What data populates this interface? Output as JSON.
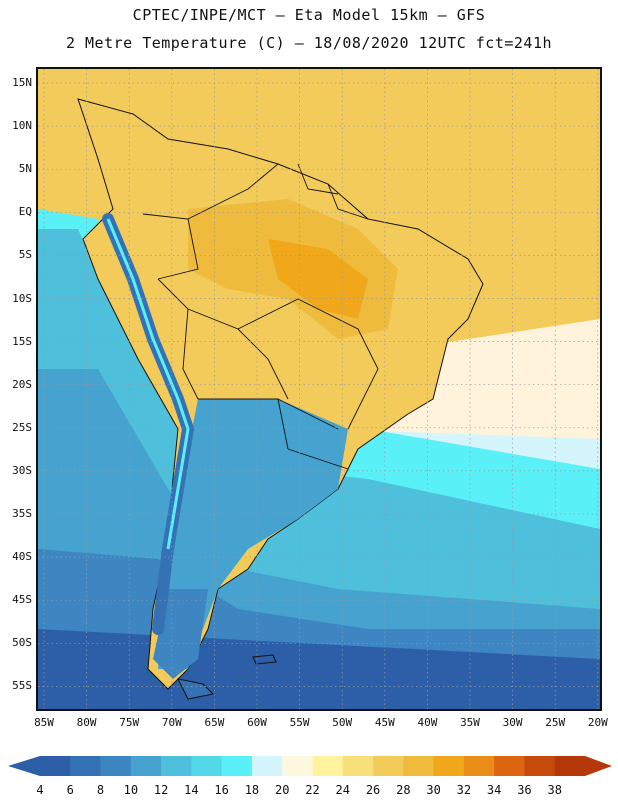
{
  "title_line1": "CPTEC/INPE/MCT –  Eta Model 15km – GFS",
  "title_line2": "2 Metre Temperature (C) – 18/08/2020 12UTC fct=241h",
  "lat_labels": [
    "15N",
    "10N",
    "5N",
    "EQ",
    "5S",
    "10S",
    "15S",
    "20S",
    "25S",
    "30S",
    "35S",
    "40S",
    "45S",
    "50S",
    "55S"
  ],
  "lon_labels": [
    "85W",
    "80W",
    "75W",
    "70W",
    "65W",
    "60W",
    "55W",
    "50W",
    "45W",
    "40W",
    "35W",
    "30W",
    "25W",
    "20W"
  ],
  "colorbar": {
    "labels": [
      "4",
      "6",
      "8",
      "10",
      "12",
      "14",
      "16",
      "18",
      "20",
      "22",
      "24",
      "26",
      "28",
      "30",
      "32",
      "34",
      "36",
      "38"
    ],
    "colors": [
      "#2c5fa8",
      "#3572b5",
      "#3d86c2",
      "#46a2cf",
      "#4ec0dc",
      "#52d8e8",
      "#59f1f7",
      "#d4f5fb",
      "#fff8e0",
      "#fff3a0",
      "#f7df7a",
      "#f2cb5a",
      "#eebb3c",
      "#f0a81a",
      "#ea8c18",
      "#dd6512",
      "#c64a0c",
      "#b5380a"
    ]
  },
  "colors": {
    "ocean_south_deep": "#2c5fa8",
    "ocean_south": "#3d86c2",
    "ocean_mid": "#46a2cf",
    "ocean_cyan": "#4ec0dc",
    "ocean_bright": "#59f1f7",
    "ocean_pale": "#d4f5fb",
    "ocean_cream": "#fff3dc",
    "north_atlantic": "#f2cb5a",
    "land_warm": "#eebb3c",
    "land_hot": "#f0a81a",
    "andes_cold": "#3572b5"
  }
}
